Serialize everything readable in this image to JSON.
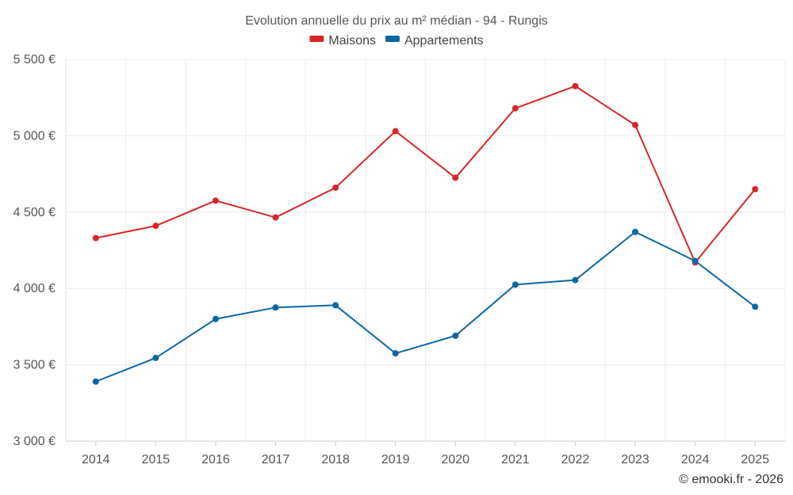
{
  "chart_data": {
    "type": "line",
    "title": "Evolution annuelle du prix au m² médian - 94 - Rungis",
    "categories": [
      "2014",
      "2015",
      "2016",
      "2017",
      "2018",
      "2019",
      "2020",
      "2021",
      "2022",
      "2023",
      "2024",
      "2025"
    ],
    "series": [
      {
        "name": "Maisons",
        "color": "#d62728",
        "values": [
          4330,
          4410,
          4575,
          4465,
          4660,
          5030,
          4725,
          5180,
          5325,
          5070,
          4170,
          4650
        ]
      },
      {
        "name": "Appartements",
        "color": "#0b67a3",
        "values": [
          3390,
          3545,
          3800,
          3875,
          3890,
          3575,
          3690,
          4025,
          4055,
          4370,
          4180,
          3880
        ]
      }
    ],
    "ylim": [
      3000,
      5500
    ],
    "yticks": [
      3000,
      3500,
      4000,
      4500,
      5000,
      5500
    ],
    "ytick_labels": [
      "3 000 €",
      "3 500 €",
      "4 000 €",
      "4 500 €",
      "5 000 €",
      "5 500 €"
    ],
    "xlabel": "",
    "ylabel": "",
    "grid": true,
    "legend": "top-center"
  },
  "credit": "© emooki.fr - 2026"
}
